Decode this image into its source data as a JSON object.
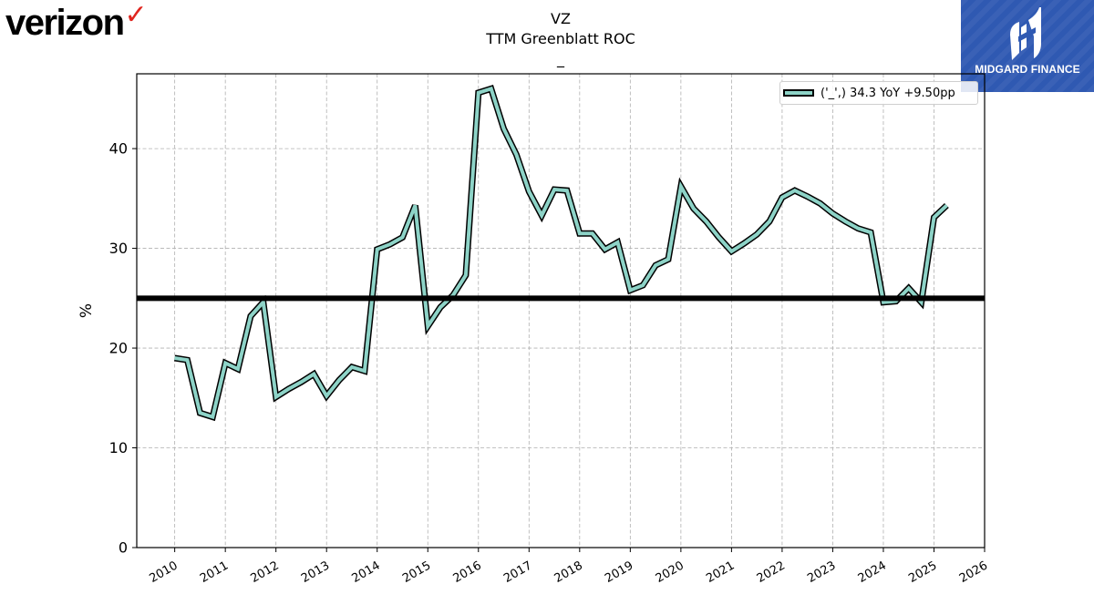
{
  "brand": {
    "wordmark": "verizon",
    "check": "✓"
  },
  "badge": {
    "text": "MIDGARD FINANCE",
    "color": "#2f59b2"
  },
  "chart_data": {
    "type": "line",
    "title": "VZ",
    "subtitle": "TTM Greenblatt ROC",
    "subtitle2": "_",
    "xlabel": "",
    "ylabel": "%",
    "xlim": [
      2009.25,
      2026.0
    ],
    "ylim": [
      0,
      47.5
    ],
    "x_ticks": [
      "2010",
      "2011",
      "2012",
      "2013",
      "2014",
      "2015",
      "2016",
      "2017",
      "2018",
      "2019",
      "2020",
      "2021",
      "2022",
      "2023",
      "2024",
      "2025",
      "2026"
    ],
    "y_ticks": [
      0,
      10,
      20,
      30,
      40
    ],
    "grid": true,
    "legend_position": "top-right",
    "reference_line": 25,
    "series": [
      {
        "name": "('_',) 34.3 YoY +9.50pp",
        "color": "#8dd3c7",
        "x": [
          2010.0,
          2010.25,
          2010.5,
          2010.75,
          2011.0,
          2011.25,
          2011.5,
          2011.75,
          2012.0,
          2012.25,
          2012.5,
          2012.75,
          2013.0,
          2013.25,
          2013.5,
          2013.75,
          2014.0,
          2014.25,
          2014.5,
          2014.75,
          2015.0,
          2015.25,
          2015.5,
          2015.75,
          2016.0,
          2016.25,
          2016.5,
          2016.75,
          2017.0,
          2017.25,
          2017.5,
          2017.75,
          2018.0,
          2018.25,
          2018.5,
          2018.75,
          2019.0,
          2019.25,
          2019.5,
          2019.75,
          2020.0,
          2020.25,
          2020.5,
          2020.75,
          2021.0,
          2021.25,
          2021.5,
          2021.75,
          2022.0,
          2022.25,
          2022.5,
          2022.75,
          2023.0,
          2023.25,
          2023.5,
          2023.75,
          2024.0,
          2024.25,
          2024.5,
          2024.75,
          2025.0,
          2025.25
        ],
        "y": [
          19.0,
          18.8,
          13.5,
          13.1,
          18.5,
          17.9,
          23.2,
          24.6,
          15.1,
          15.9,
          16.6,
          17.4,
          15.2,
          16.8,
          18.1,
          17.7,
          29.9,
          30.4,
          31.1,
          34.3,
          22.2,
          24.1,
          25.3,
          27.3,
          45.6,
          46.0,
          42.0,
          39.4,
          35.7,
          33.3,
          35.9,
          35.8,
          31.5,
          31.5,
          29.9,
          30.6,
          25.8,
          26.3,
          28.3,
          28.9,
          36.2,
          34.0,
          32.7,
          31.1,
          29.7,
          30.5,
          31.4,
          32.7,
          35.1,
          35.8,
          35.2,
          34.5,
          33.5,
          32.7,
          32.0,
          31.6,
          24.6,
          24.7,
          26.0,
          24.6,
          33.1,
          34.3
        ]
      }
    ]
  }
}
